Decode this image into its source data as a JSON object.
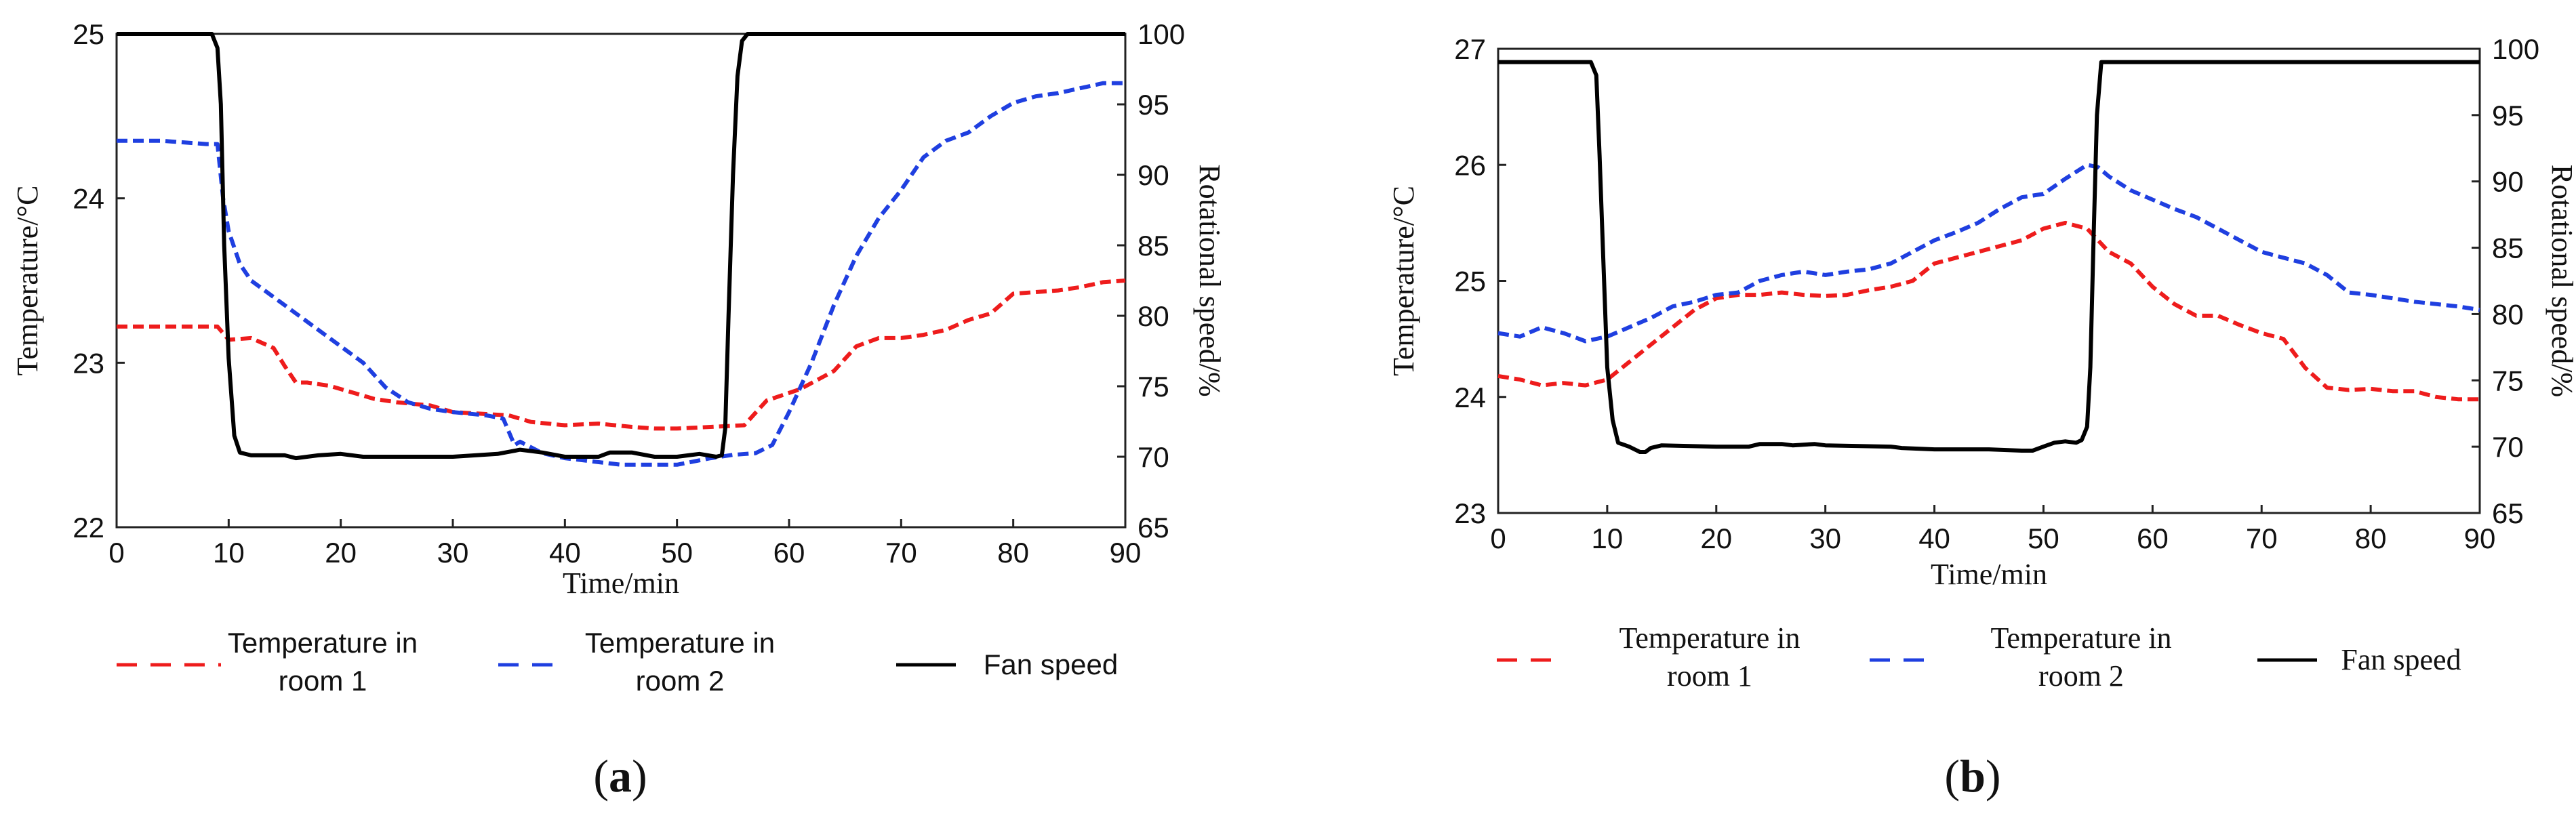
{
  "chart_data": [
    {
      "type": "line",
      "panel_label": "a",
      "xlabel": "Time/min",
      "ylabel": "Temperature/°C",
      "y2label": "Rotational speed/%",
      "xlim": [
        0,
        90
      ],
      "ylim": [
        22,
        25
      ],
      "y2lim": [
        65,
        100
      ],
      "xticks": [
        "0",
        "10",
        "20",
        "30",
        "40",
        "50",
        "60",
        "70",
        "80",
        "90"
      ],
      "yticks": [
        "22",
        "23",
        "24",
        "25"
      ],
      "y2ticks": [
        "65",
        "70",
        "75",
        "80",
        "85",
        "90",
        "95",
        "100"
      ],
      "legend": [
        {
          "label_lines": [
            "Temperature in",
            "room 1"
          ],
          "color": "#ee1c1c",
          "dash": true
        },
        {
          "label_lines": [
            "Temperature in",
            "room 2"
          ],
          "color": "#1f3fe0",
          "dash": true
        },
        {
          "label_lines": [
            "Fan speed"
          ],
          "color": "#000000",
          "dash": false
        }
      ],
      "series": [
        {
          "name": "Temperature in room 1",
          "axis": "left",
          "color": "#ee1c1c",
          "dashed": true,
          "x": [
            0,
            8,
            9,
            10,
            12,
            14,
            15,
            16,
            17,
            19,
            21,
            23,
            25,
            28,
            30,
            35,
            37,
            40,
            43,
            46,
            48,
            50,
            53,
            56,
            58,
            61,
            64,
            66,
            68,
            70,
            72,
            74,
            76,
            78,
            80,
            84,
            86,
            88,
            90
          ],
          "values": [
            23.22,
            23.22,
            23.22,
            23.14,
            23.15,
            23.09,
            22.98,
            22.88,
            22.88,
            22.86,
            22.82,
            22.78,
            22.76,
            22.74,
            22.7,
            22.68,
            22.64,
            22.62,
            22.63,
            22.61,
            22.6,
            22.6,
            22.61,
            22.62,
            22.77,
            22.84,
            22.95,
            23.1,
            23.15,
            23.15,
            23.17,
            23.2,
            23.26,
            23.3,
            23.42,
            23.44,
            23.46,
            23.49,
            23.5
          ]
        },
        {
          "name": "Temperature in room 2",
          "axis": "left",
          "color": "#1f3fe0",
          "dashed": true,
          "x": [
            0,
            4,
            8,
            9,
            9.5,
            10,
            11,
            12,
            14,
            16,
            18,
            20,
            22,
            24,
            26,
            28,
            30,
            33,
            34.5,
            35.5,
            36,
            38,
            40,
            45,
            50,
            53,
            55,
            57,
            58.5,
            60,
            62,
            64,
            66,
            68,
            70,
            72,
            74,
            76,
            78,
            80,
            82,
            84,
            86,
            88,
            90
          ],
          "values": [
            24.35,
            24.35,
            24.33,
            24.33,
            24.0,
            23.8,
            23.6,
            23.5,
            23.4,
            23.3,
            23.2,
            23.1,
            23.0,
            22.85,
            22.76,
            22.72,
            22.7,
            22.68,
            22.66,
            22.5,
            22.52,
            22.45,
            22.42,
            22.38,
            22.38,
            22.42,
            22.44,
            22.45,
            22.5,
            22.7,
            23.0,
            23.35,
            23.65,
            23.88,
            24.05,
            24.25,
            24.35,
            24.4,
            24.5,
            24.58,
            24.62,
            24.64,
            24.67,
            24.7,
            24.7
          ]
        },
        {
          "name": "Fan speed",
          "axis": "right",
          "color": "#000000",
          "dashed": false,
          "x": [
            0,
            8.5,
            9,
            9.3,
            9.6,
            10,
            10.5,
            11,
            12,
            15,
            16,
            18,
            20,
            22,
            24,
            30,
            34,
            36,
            37,
            38,
            40,
            43,
            44,
            46,
            48,
            50,
            52,
            53.5,
            54,
            54.3,
            54.6,
            55,
            55.4,
            55.8,
            56.3,
            90
          ],
          "values": [
            100,
            100,
            99,
            95,
            85,
            77,
            71.5,
            70.3,
            70.1,
            70.1,
            69.9,
            70.1,
            70.2,
            70.0,
            70.0,
            70.0,
            70.2,
            70.5,
            70.4,
            70.3,
            70.0,
            70.0,
            70.3,
            70.3,
            70.0,
            70.0,
            70.2,
            70.0,
            70.1,
            72,
            80,
            90,
            97,
            99.5,
            100,
            100
          ]
        }
      ]
    },
    {
      "type": "line",
      "panel_label": "b",
      "xlabel": "Time/min",
      "ylabel": "Temperature/°C",
      "y2label": "Rotational speed/%",
      "xlim": [
        0,
        90
      ],
      "ylim": [
        23,
        27
      ],
      "y2lim": [
        65,
        100
      ],
      "xticks": [
        "0",
        "10",
        "20",
        "30",
        "40",
        "50",
        "60",
        "70",
        "80",
        "90"
      ],
      "yticks": [
        "23",
        "24",
        "25",
        "26",
        "27"
      ],
      "y2ticks": [
        "65",
        "70",
        "75",
        "80",
        "85",
        "90",
        "95",
        "100"
      ],
      "legend": [
        {
          "label_lines": [
            "Temperature in",
            "room 1"
          ],
          "color": "#ee1c1c",
          "dash": true
        },
        {
          "label_lines": [
            "Temperature in",
            "room 2"
          ],
          "color": "#1f3fe0",
          "dash": true
        },
        {
          "label_lines": [
            "Fan speed"
          ],
          "color": "#000000",
          "dash": false
        }
      ],
      "series": [
        {
          "name": "Temperature in room 1",
          "axis": "left",
          "color": "#ee1c1c",
          "dashed": true,
          "x": [
            0,
            2,
            4,
            6,
            8,
            10,
            12,
            14,
            16,
            18,
            20,
            22,
            24,
            26,
            28,
            30,
            32,
            34,
            36,
            38,
            40,
            42,
            44,
            46,
            48,
            50,
            52,
            54,
            56,
            58,
            60,
            62,
            64,
            66,
            68,
            70,
            72,
            74,
            76,
            78,
            80,
            82,
            84,
            86,
            88,
            90
          ],
          "values": [
            24.18,
            24.15,
            24.1,
            24.12,
            24.1,
            24.15,
            24.3,
            24.45,
            24.6,
            24.75,
            24.85,
            24.88,
            24.88,
            24.9,
            24.88,
            24.87,
            24.88,
            24.92,
            24.95,
            25.0,
            25.15,
            25.2,
            25.25,
            25.3,
            25.35,
            25.45,
            25.5,
            25.45,
            25.25,
            25.15,
            24.95,
            24.8,
            24.7,
            24.7,
            24.62,
            24.55,
            24.5,
            24.25,
            24.08,
            24.06,
            24.07,
            24.05,
            24.05,
            24.0,
            23.98,
            23.98
          ]
        },
        {
          "name": "Temperature in room 2",
          "axis": "left",
          "color": "#1f3fe0",
          "dashed": true,
          "x": [
            0,
            2,
            4,
            6,
            8,
            10,
            12,
            14,
            16,
            18,
            20,
            22,
            24,
            26,
            28,
            30,
            32,
            34,
            36,
            38,
            40,
            42,
            44,
            46,
            48,
            50,
            52,
            54,
            55,
            56,
            58,
            60,
            62,
            64,
            66,
            68,
            70,
            72,
            74,
            76,
            78,
            80,
            82,
            84,
            86,
            88,
            90
          ],
          "values": [
            24.55,
            24.52,
            24.6,
            24.55,
            24.48,
            24.52,
            24.6,
            24.68,
            24.78,
            24.82,
            24.88,
            24.9,
            25.0,
            25.05,
            25.08,
            25.05,
            25.08,
            25.1,
            25.15,
            25.25,
            25.35,
            25.42,
            25.5,
            25.62,
            25.72,
            25.75,
            25.88,
            26.0,
            25.98,
            25.9,
            25.78,
            25.7,
            25.62,
            25.55,
            25.45,
            25.35,
            25.25,
            25.2,
            25.15,
            25.05,
            24.9,
            24.88,
            24.85,
            24.82,
            24.8,
            24.78,
            24.75
          ]
        },
        {
          "name": "Fan speed",
          "axis": "right",
          "color": "#000000",
          "dashed": false,
          "x": [
            0,
            8.5,
            9,
            9.3,
            9.6,
            10,
            10.5,
            11,
            12,
            13,
            13.5,
            14,
            15,
            20,
            23,
            24,
            26,
            27,
            29,
            30,
            36,
            37,
            40,
            45,
            48,
            49,
            50,
            51,
            52,
            53,
            53.5,
            54,
            54.3,
            54.6,
            54.9,
            55.3,
            90
          ],
          "values": [
            99,
            99,
            98,
            92,
            85,
            76,
            72,
            70.3,
            70.0,
            69.6,
            69.6,
            69.9,
            70.1,
            70.0,
            70.0,
            70.2,
            70.2,
            70.1,
            70.2,
            70.1,
            70.0,
            69.9,
            69.8,
            69.8,
            69.7,
            69.7,
            70.0,
            70.3,
            70.4,
            70.3,
            70.5,
            71.5,
            76,
            86,
            95,
            99,
            99
          ]
        }
      ]
    }
  ]
}
